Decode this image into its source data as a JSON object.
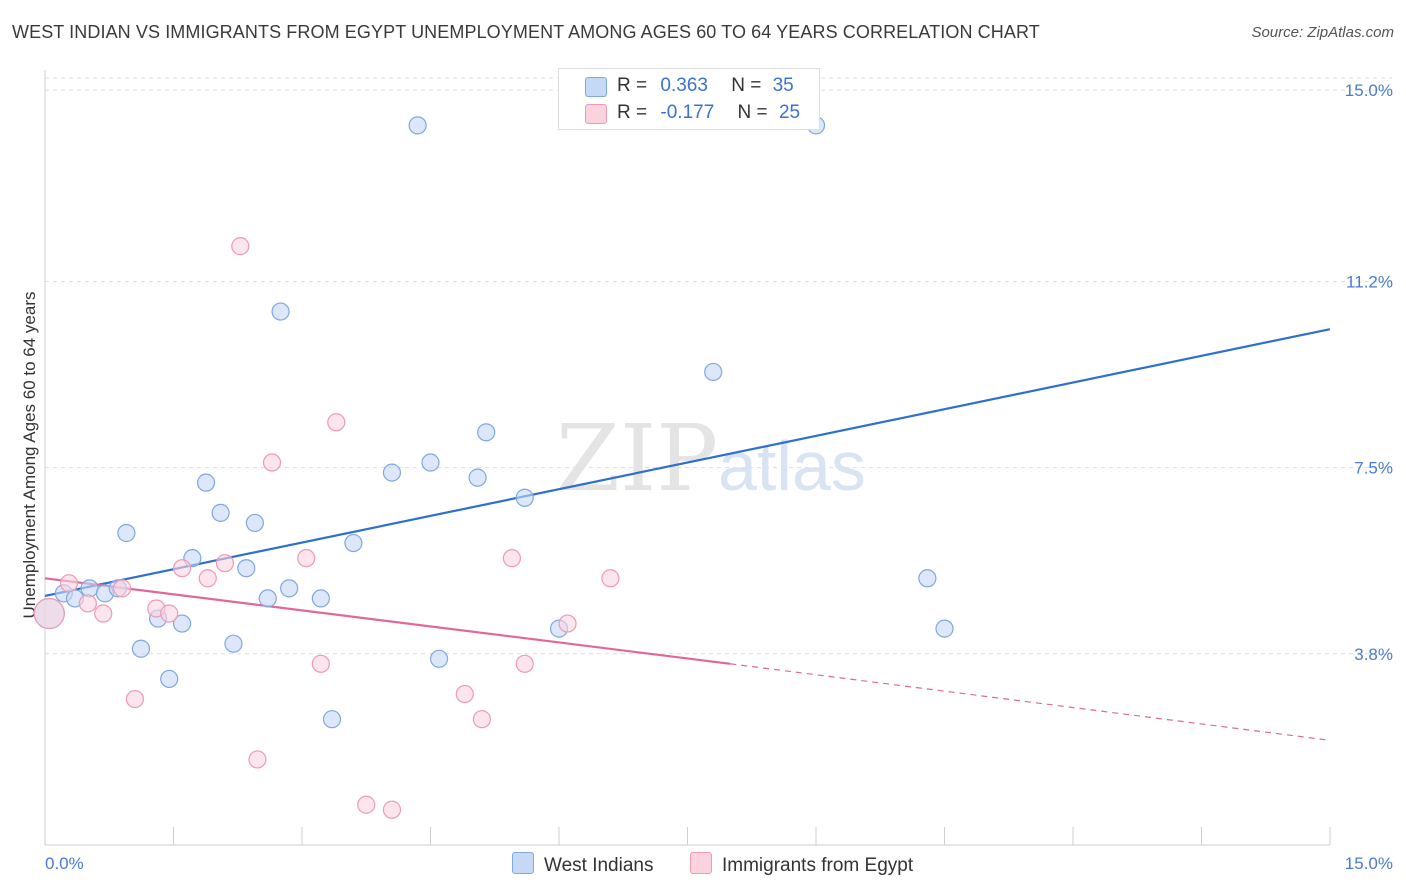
{
  "title": "WEST INDIAN VS IMMIGRANTS FROM EGYPT UNEMPLOYMENT AMONG AGES 60 TO 64 YEARS CORRELATION CHART",
  "source": "Source: ZipAtlas.com",
  "watermark": {
    "zip": "ZIP",
    "atlas": "atlas"
  },
  "legend": {
    "r_label": "R =",
    "n_label": "N =",
    "rows": [
      {
        "r": "0.363",
        "n": "35",
        "color": "#b9d0f2",
        "border": "#7fa7e0"
      },
      {
        "r": "-0.177",
        "n": "25",
        "color": "#f9cfdc",
        "border": "#ee9ab4"
      }
    ]
  },
  "bottom_legend": [
    "West Indians",
    "Immigrants from Egypt"
  ],
  "chart_data": {
    "type": "scatter",
    "title": "WEST INDIAN VS IMMIGRANTS FROM EGYPT UNEMPLOYMENT AMONG AGES 60 TO 64 YEARS CORRELATION CHART",
    "xlabel": "",
    "ylabel": "Unemployment Among Ages 60 to 64 years",
    "xlim": [
      0,
      15
    ],
    "ylim": [
      0,
      15.4
    ],
    "x_tick_labels": [
      "0.0%",
      "15.0%"
    ],
    "y_ticks": [
      3.8,
      7.5,
      11.2,
      15.0
    ],
    "y_tick_labels": [
      "3.8%",
      "7.5%",
      "11.2%",
      "15.0%"
    ],
    "grid": "horizontal dashed",
    "series": [
      {
        "name": "West Indians",
        "color": "#7fa7e0",
        "fill": "#c5d8f5",
        "trend_color": "#2f6fd0",
        "points": [
          [
            0.05,
            4.6
          ],
          [
            0.22,
            5.0
          ],
          [
            0.35,
            4.9
          ],
          [
            0.52,
            5.1
          ],
          [
            0.7,
            5.0
          ],
          [
            0.85,
            5.1
          ],
          [
            0.95,
            6.2
          ],
          [
            1.12,
            3.9
          ],
          [
            1.32,
            4.5
          ],
          [
            1.45,
            3.3
          ],
          [
            1.6,
            4.4
          ],
          [
            1.72,
            5.7
          ],
          [
            1.88,
            7.2
          ],
          [
            2.05,
            6.6
          ],
          [
            2.2,
            4.0
          ],
          [
            2.35,
            5.5
          ],
          [
            2.45,
            6.4
          ],
          [
            2.6,
            4.9
          ],
          [
            2.75,
            10.6
          ],
          [
            2.85,
            5.1
          ],
          [
            3.22,
            4.9
          ],
          [
            3.35,
            2.5
          ],
          [
            3.6,
            6.0
          ],
          [
            4.05,
            7.4
          ],
          [
            4.35,
            14.3
          ],
          [
            4.5,
            7.6
          ],
          [
            4.6,
            3.7
          ],
          [
            5.05,
            7.3
          ],
          [
            5.15,
            8.2
          ],
          [
            5.6,
            6.9
          ],
          [
            6.0,
            4.3
          ],
          [
            7.8,
            9.4
          ],
          [
            9.0,
            14.3
          ],
          [
            10.3,
            5.3
          ],
          [
            10.5,
            4.3
          ]
        ],
        "trend": {
          "x": [
            0,
            15
          ],
          "y": [
            4.95,
            10.25
          ]
        }
      },
      {
        "name": "Immigrants from Egypt",
        "color": "#ee9ab4",
        "fill": "#fad3df",
        "trend_color": "#e0679a",
        "points": [
          [
            0.05,
            4.6
          ],
          [
            0.28,
            5.2
          ],
          [
            0.5,
            4.8
          ],
          [
            0.68,
            4.6
          ],
          [
            0.9,
            5.1
          ],
          [
            1.05,
            2.9
          ],
          [
            1.3,
            4.7
          ],
          [
            1.45,
            4.6
          ],
          [
            1.6,
            5.5
          ],
          [
            1.9,
            5.3
          ],
          [
            2.1,
            5.6
          ],
          [
            2.28,
            11.9
          ],
          [
            2.48,
            1.7
          ],
          [
            2.65,
            7.6
          ],
          [
            3.05,
            5.7
          ],
          [
            3.22,
            3.6
          ],
          [
            3.4,
            8.4
          ],
          [
            3.75,
            0.8
          ],
          [
            4.05,
            0.7
          ],
          [
            4.9,
            3.0
          ],
          [
            5.1,
            2.5
          ],
          [
            5.45,
            5.7
          ],
          [
            5.6,
            3.6
          ],
          [
            6.1,
            4.4
          ],
          [
            6.6,
            5.3
          ]
        ],
        "trend": {
          "x": [
            0,
            8.0
          ],
          "y": [
            5.3,
            3.6
          ]
        },
        "trend_extension": {
          "x": [
            8.0,
            15
          ],
          "y": [
            3.6,
            2.08
          ]
        }
      }
    ]
  }
}
